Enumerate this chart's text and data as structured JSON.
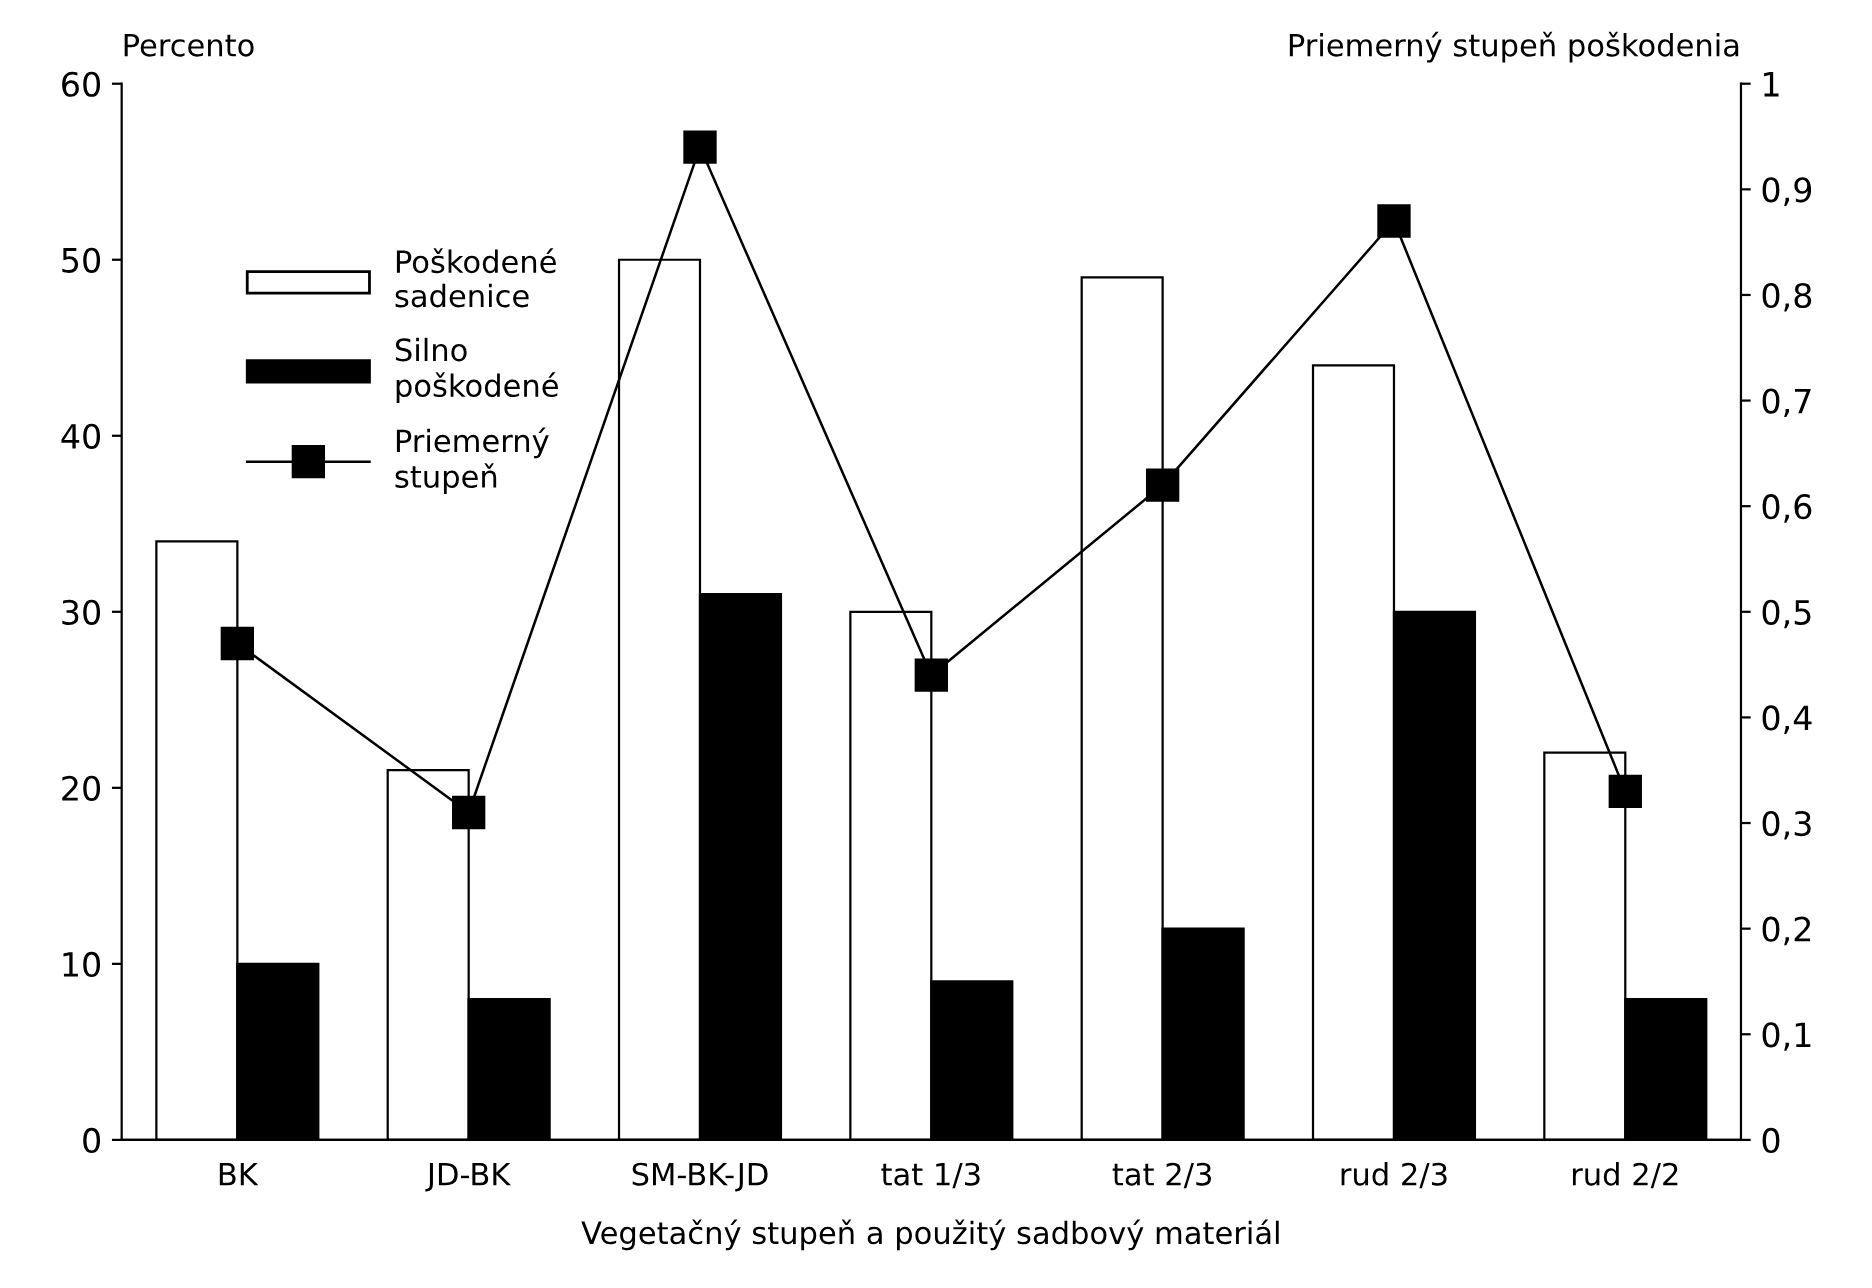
{
  "chart_data": {
    "type": "bar",
    "categories": [
      "BK",
      "JD-BK",
      "SM-BK-JD",
      "tat 1/3",
      "tat 2/3",
      "rud 2/3",
      "rud 2/2"
    ],
    "series": [
      {
        "name": "Poškodené\nsadenice",
        "color": "#ffffff",
        "values": [
          34,
          21,
          50,
          30,
          49,
          44,
          22
        ]
      },
      {
        "name": "Silno\npoškodené",
        "color": "#000000",
        "values": [
          10,
          8,
          31,
          9,
          12,
          30,
          8
        ]
      },
      {
        "name": "Priemerný\nstupeň",
        "color": "#000000",
        "type": "line",
        "axis": "y2",
        "marker": "square",
        "line_style": "solid",
        "values": [
          0.47,
          0.31,
          0.94,
          0.44,
          0.62,
          0.87,
          0.33
        ]
      }
    ],
    "ylabel": "Percento",
    "y2label": "Priemerný stupeň poškodenia",
    "xlabel": "Vegetačný stupeň a použitý sadbový materiál",
    "ylim": [
      0,
      60
    ],
    "yticks": [
      0,
      10,
      20,
      30,
      40,
      50,
      60
    ],
    "y2lim": [
      0,
      1
    ],
    "y2ticks": [
      0,
      {
        "value": 0.1,
        "label": "0,1"
      },
      {
        "value": 0.2,
        "label": "0,2"
      },
      {
        "value": 0.3,
        "label": "0,3"
      },
      {
        "value": 0.4,
        "label": "0,4"
      },
      {
        "value": 0.5,
        "label": "0,5"
      },
      {
        "value": 0.6,
        "label": "0,6"
      },
      {
        "value": 0.7,
        "label": "0,7"
      },
      {
        "value": 0.8,
        "label": "0,8"
      },
      {
        "value": 0.9,
        "label": "0,9"
      },
      1
    ],
    "grid": false,
    "legend": "top left"
  }
}
